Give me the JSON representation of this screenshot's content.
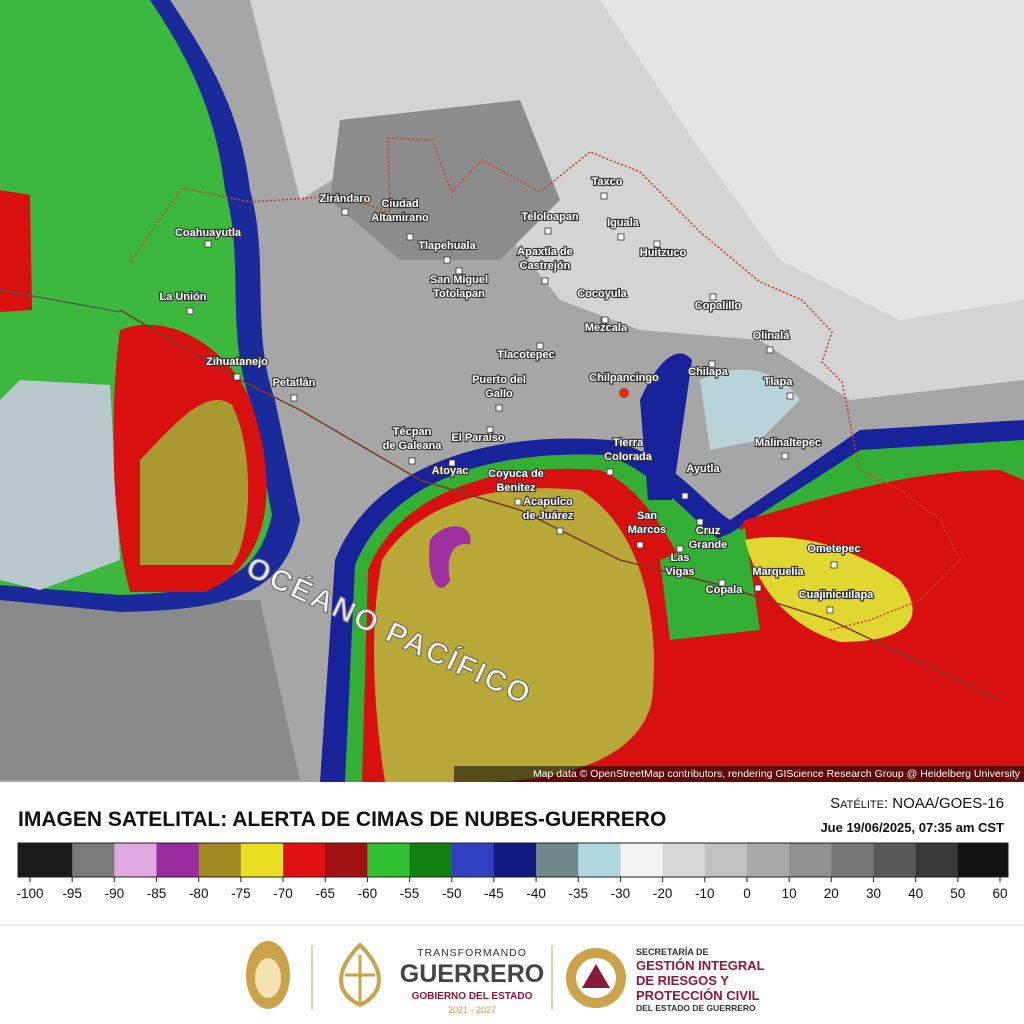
{
  "map": {
    "places": [
      [
        "Zirándaro"
      ],
      [
        "Ciudad",
        "Altamirano"
      ],
      [
        "Coahuayutla"
      ],
      [
        "Tlapehuala"
      ],
      [
        "Teloloapan"
      ],
      [
        "Taxco"
      ],
      [
        "Iguala"
      ],
      [
        "Apaxtla de",
        "Castrejón"
      ],
      [
        "Huitzuco"
      ],
      [
        "San Miguel",
        "Totolapan"
      ],
      [
        "La Unión"
      ],
      [
        "Cocoyula"
      ],
      [
        "Copalillo"
      ],
      [
        "Mezcala"
      ],
      [
        "Olinalá"
      ],
      [
        "Zihuatanejo"
      ],
      [
        "Petatlán"
      ],
      [
        "Tlacotepec"
      ],
      [
        "Chilpancingo"
      ],
      [
        "Chilapa"
      ],
      [
        "Tlapa"
      ],
      [
        "Puerto del",
        "Gallo"
      ],
      [
        "Técpan",
        "de Galeana"
      ],
      [
        "El Paraíso"
      ],
      [
        "Atoyac"
      ],
      [
        "Coyuca de",
        "Benítez"
      ],
      [
        "Tierra",
        "Colorada"
      ],
      [
        "Malinaltepec"
      ],
      [
        "Acapulco",
        "de Juárez"
      ],
      [
        "San",
        "Marcos"
      ],
      [
        "Ayutla"
      ],
      [
        "Cruz",
        "Grande"
      ],
      [
        "Las",
        "Vigas"
      ],
      [
        "Copala"
      ],
      [
        "Marquelia"
      ],
      [
        "Ometepec"
      ],
      [
        "Cuajinicuilapa"
      ]
    ],
    "ocean_label": "OCÉANO PACÍFICO",
    "attribution": "Map data © OpenStreetMap contributors, rendering GIScience Research Group @ Heidelberg University"
  },
  "header": {
    "title": "IMAGEN SATELITAL: ALERTA DE CIMAS DE NUBES-GUERRERO",
    "satellite": "Satélite: NOAA/GOES-16",
    "datetime": "Jue 19/06/2025, 07:35 am CST"
  },
  "colorbar": {
    "ticks": [
      -100,
      -95,
      -90,
      -85,
      -80,
      -75,
      -70,
      -65,
      -60,
      -55,
      -50,
      -45,
      -40,
      -35,
      -30,
      -20,
      -10,
      0,
      10,
      20,
      30,
      40,
      50,
      60
    ],
    "colors": [
      "#1a1a1a",
      "#7a7a7a",
      "#e0a8e0",
      "#9a2aa0",
      "#a08a20",
      "#e8e020",
      "#e01010",
      "#a01010",
      "#30c030",
      "#108010",
      "#3040c0",
      "#101a80",
      "#708888",
      "#b0d8e0",
      "#f2f2f2",
      "#d8d8d8",
      "#c0c0c0",
      "#a8a8a8",
      "#909090",
      "#787878",
      "#585858",
      "#383838",
      "#101010"
    ]
  },
  "footer": {
    "guerrero": {
      "tagline": "TRANSFORMANDO",
      "name": "GUERRERO",
      "subtitle": "GOBIERNO DEL ESTADO",
      "years": "2021 - 2027"
    },
    "sgirpc": {
      "lines": [
        "SECRETARÍA DE",
        "GESTIÓN INTEGRAL",
        "DE RIESGOS Y",
        "PROTECCIÓN CIVIL",
        "DEL ESTADO DE GUERRERO"
      ]
    }
  }
}
